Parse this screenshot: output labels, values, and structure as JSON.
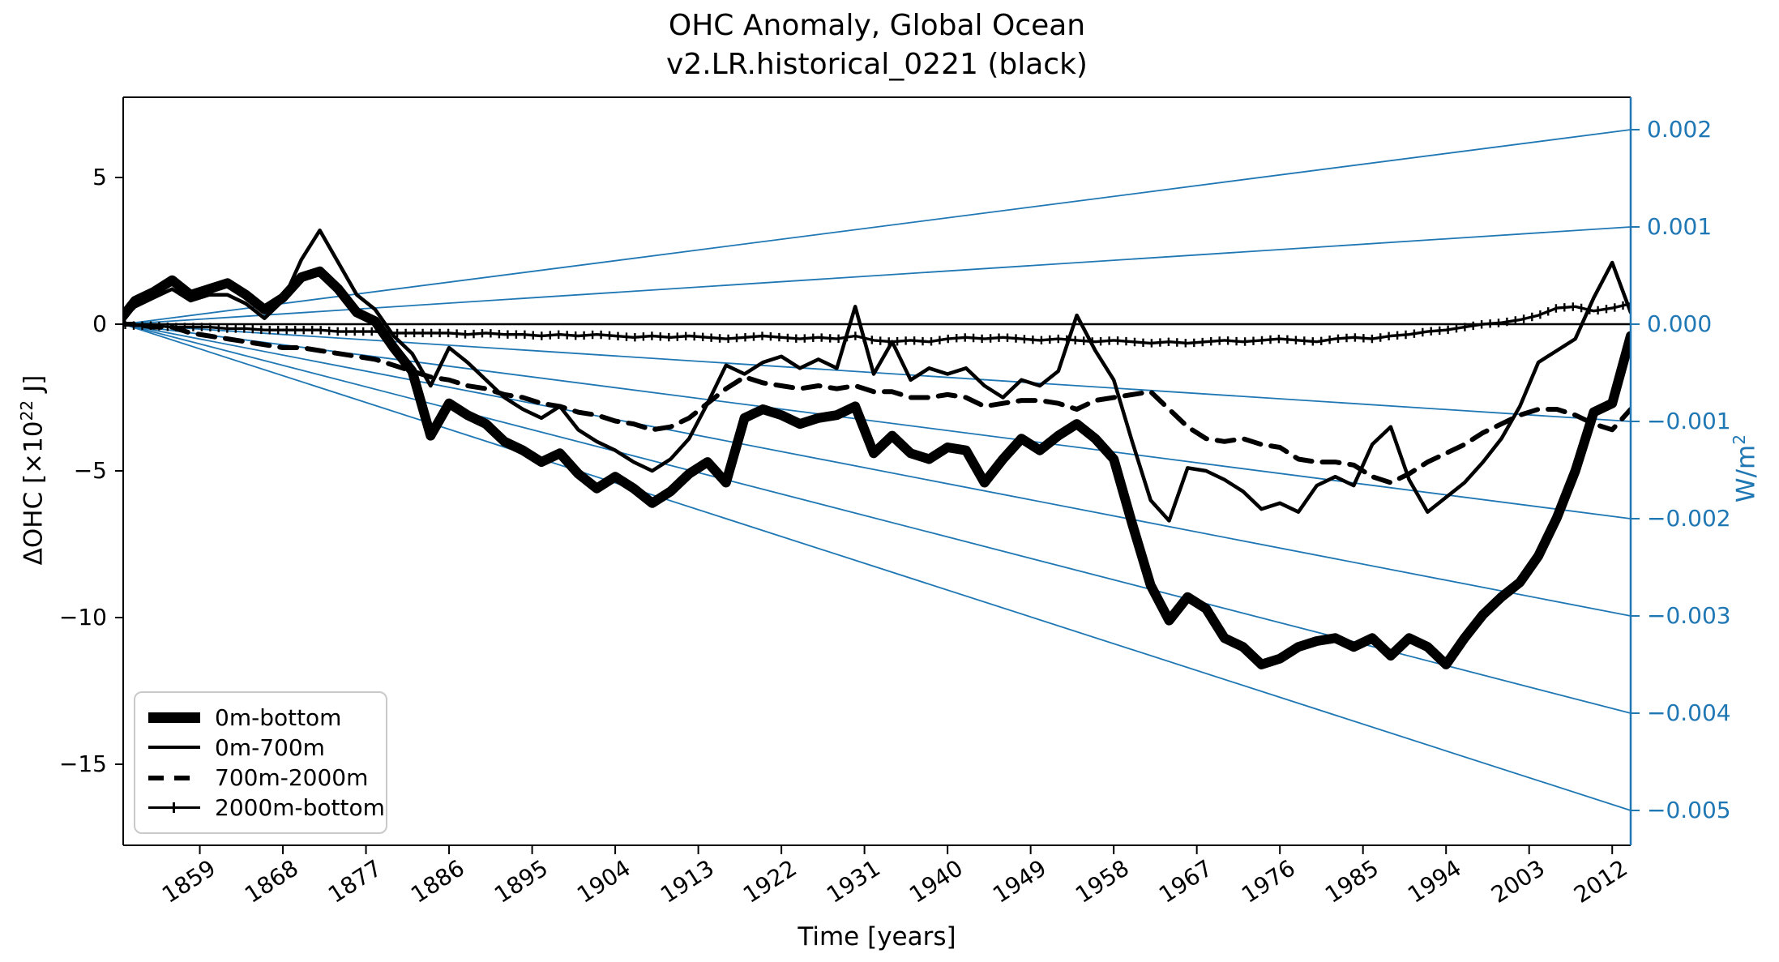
{
  "title": {
    "line1": "OHC Anomaly, Global Ocean",
    "line2": "v2.LR.historical_0221 (black)"
  },
  "labels": {
    "xlabel": "Time [years]",
    "ylabel_left_pre": "ΔOHC [×10",
    "ylabel_left_sup": "22",
    "ylabel_left_post": " J]",
    "ylabel_right_pre": "W/m",
    "ylabel_right_sup": "2"
  },
  "colors": {
    "accent_blue": "#1f77b4",
    "curve_black": "#000000",
    "legend_border": "#c9c9c9"
  },
  "chart_data": {
    "type": "line",
    "title": "OHC Anomaly, Global Ocean\nv2.LR.historical_0221 (black)",
    "xlabel": "Time [years]",
    "ylabel": "ΔOHC [×10²² J]",
    "ylabel_right": "W/m²",
    "grid": false,
    "legend_position": "lower-left",
    "xlim": [
      1850.7,
      2014.0
    ],
    "ylim_left": [
      -17.76,
      7.73
    ],
    "ylim_right": [
      -0.00536,
      0.00233
    ],
    "x_ticks": [
      1859,
      1868,
      1877,
      1886,
      1895,
      1904,
      1913,
      1922,
      1931,
      1940,
      1949,
      1958,
      1967,
      1976,
      1985,
      1994,
      2003,
      2012
    ],
    "y_ticks_left": [
      5,
      0,
      -5,
      -10,
      -15
    ],
    "y_ticks_right": [
      0.002,
      0.001,
      0.0,
      -0.001,
      -0.002,
      -0.003,
      -0.004,
      -0.005
    ],
    "flux_reference_lines": {
      "description": "straight lines fanning from (1850.7, 0) to the right axis, one per right-axis tick value",
      "slopes_w_m2": [
        0.002,
        0.001,
        0.0,
        -0.001,
        -0.002,
        -0.003,
        -0.004,
        -0.005
      ]
    },
    "years": [
      1850,
      1852,
      1854,
      1856,
      1858,
      1860,
      1862,
      1864,
      1866,
      1868,
      1870,
      1872,
      1874,
      1876,
      1878,
      1880,
      1882,
      1884,
      1886,
      1888,
      1890,
      1892,
      1894,
      1896,
      1898,
      1900,
      1902,
      1904,
      1906,
      1908,
      1910,
      1912,
      1914,
      1916,
      1918,
      1920,
      1922,
      1924,
      1926,
      1928,
      1930,
      1932,
      1934,
      1936,
      1938,
      1940,
      1942,
      1944,
      1946,
      1948,
      1950,
      1952,
      1954,
      1956,
      1958,
      1960,
      1962,
      1964,
      1966,
      1968,
      1970,
      1972,
      1974,
      1976,
      1978,
      1980,
      1982,
      1984,
      1986,
      1988,
      1990,
      1992,
      1994,
      1996,
      1998,
      2000,
      2002,
      2004,
      2006,
      2008,
      2010,
      2012,
      2014
    ],
    "series": [
      {
        "name": "0m-bottom",
        "style": "solid-thick",
        "values": [
          0.0,
          0.8,
          1.1,
          1.5,
          1.0,
          1.2,
          1.4,
          1.0,
          0.5,
          0.9,
          1.6,
          1.8,
          1.2,
          0.4,
          0.1,
          -0.8,
          -1.6,
          -3.8,
          -2.7,
          -3.1,
          -3.4,
          -4.0,
          -4.3,
          -4.7,
          -4.4,
          -5.1,
          -5.6,
          -5.2,
          -5.6,
          -6.1,
          -5.7,
          -5.1,
          -4.7,
          -5.4,
          -3.2,
          -2.9,
          -3.1,
          -3.4,
          -3.2,
          -3.1,
          -2.8,
          -4.4,
          -3.8,
          -4.4,
          -4.6,
          -4.2,
          -4.3,
          -5.4,
          -4.6,
          -3.9,
          -4.3,
          -3.8,
          -3.4,
          -3.9,
          -4.6,
          -6.8,
          -8.9,
          -10.1,
          -9.3,
          -9.7,
          -10.7,
          -11.0,
          -11.6,
          -11.4,
          -11.0,
          -10.8,
          -10.7,
          -11.0,
          -10.7,
          -11.3,
          -10.7,
          -11.0,
          -11.6,
          -10.7,
          -9.9,
          -9.3,
          -8.8,
          -7.9,
          -6.6,
          -5.0,
          -3.0,
          -2.7,
          -0.4
        ]
      },
      {
        "name": "0m-700m",
        "style": "solid-thin",
        "values": [
          0.0,
          0.6,
          0.9,
          1.2,
          0.8,
          1.0,
          1.0,
          0.7,
          0.2,
          0.8,
          2.2,
          3.2,
          2.1,
          1.0,
          0.5,
          -0.4,
          -1.0,
          -2.1,
          -0.8,
          -1.3,
          -1.9,
          -2.5,
          -2.9,
          -3.2,
          -2.8,
          -3.6,
          -4.0,
          -4.3,
          -4.7,
          -5.0,
          -4.6,
          -3.9,
          -2.7,
          -1.4,
          -1.7,
          -1.3,
          -1.1,
          -1.5,
          -1.2,
          -1.5,
          0.6,
          -1.7,
          -0.6,
          -1.9,
          -1.5,
          -1.7,
          -1.5,
          -2.1,
          -2.5,
          -1.9,
          -2.1,
          -1.6,
          0.3,
          -0.9,
          -1.9,
          -4.0,
          -6.0,
          -6.7,
          -4.9,
          -5.0,
          -5.3,
          -5.7,
          -6.3,
          -6.1,
          -6.4,
          -5.5,
          -5.2,
          -5.5,
          -4.1,
          -3.5,
          -5.3,
          -6.4,
          -5.9,
          -5.4,
          -4.7,
          -3.9,
          -2.8,
          -1.3,
          -0.9,
          -0.5,
          0.9,
          2.1,
          0.4
        ]
      },
      {
        "name": "700m-2000m",
        "style": "dashed",
        "values": [
          0.0,
          0.0,
          -0.1,
          -0.1,
          -0.3,
          -0.4,
          -0.5,
          -0.6,
          -0.7,
          -0.8,
          -0.8,
          -0.9,
          -1.0,
          -1.1,
          -1.2,
          -1.4,
          -1.6,
          -1.8,
          -1.9,
          -2.1,
          -2.2,
          -2.4,
          -2.5,
          -2.7,
          -2.8,
          -3.0,
          -3.1,
          -3.3,
          -3.4,
          -3.6,
          -3.5,
          -3.2,
          -2.7,
          -2.2,
          -1.8,
          -2.0,
          -2.1,
          -2.2,
          -2.1,
          -2.2,
          -2.1,
          -2.3,
          -2.3,
          -2.5,
          -2.5,
          -2.4,
          -2.5,
          -2.8,
          -2.7,
          -2.6,
          -2.6,
          -2.7,
          -2.9,
          -2.6,
          -2.5,
          -2.4,
          -2.3,
          -2.9,
          -3.5,
          -3.9,
          -4.0,
          -3.9,
          -4.1,
          -4.2,
          -4.6,
          -4.7,
          -4.7,
          -4.8,
          -5.2,
          -5.4,
          -5.1,
          -4.7,
          -4.4,
          -4.1,
          -3.7,
          -3.4,
          -3.1,
          -2.9,
          -2.9,
          -3.1,
          -3.4,
          -3.6,
          -2.9
        ]
      },
      {
        "name": "2000m-bottom",
        "style": "solid-plus-markers",
        "values": [
          0.0,
          -0.05,
          -0.05,
          -0.1,
          -0.1,
          -0.1,
          -0.15,
          -0.15,
          -0.2,
          -0.2,
          -0.2,
          -0.2,
          -0.25,
          -0.25,
          -0.25,
          -0.3,
          -0.3,
          -0.3,
          -0.3,
          -0.35,
          -0.3,
          -0.35,
          -0.35,
          -0.4,
          -0.35,
          -0.4,
          -0.35,
          -0.4,
          -0.45,
          -0.4,
          -0.45,
          -0.4,
          -0.45,
          -0.5,
          -0.45,
          -0.4,
          -0.45,
          -0.5,
          -0.45,
          -0.5,
          -0.4,
          -0.55,
          -0.6,
          -0.55,
          -0.6,
          -0.5,
          -0.45,
          -0.5,
          -0.45,
          -0.5,
          -0.55,
          -0.5,
          -0.55,
          -0.6,
          -0.55,
          -0.6,
          -0.65,
          -0.6,
          -0.65,
          -0.6,
          -0.55,
          -0.6,
          -0.55,
          -0.5,
          -0.55,
          -0.6,
          -0.5,
          -0.45,
          -0.5,
          -0.4,
          -0.35,
          -0.25,
          -0.2,
          -0.1,
          0.0,
          0.05,
          0.15,
          0.3,
          0.55,
          0.6,
          0.45,
          0.55,
          0.7
        ]
      }
    ]
  },
  "legend": {
    "items": [
      {
        "label": "0m-bottom"
      },
      {
        "label": "0m-700m"
      },
      {
        "label": "700m-2000m"
      },
      {
        "label": "2000m-bottom"
      }
    ]
  }
}
